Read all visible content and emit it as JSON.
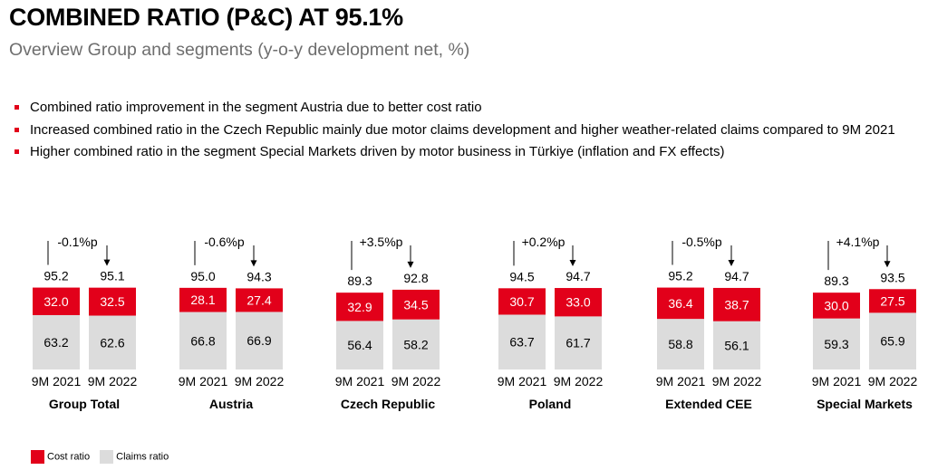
{
  "header": {
    "title": "COMBINED RATIO (P&C) AT 95.1%",
    "subtitle": "Overview Group and segments (y-o-y development net, %)"
  },
  "bullets": [
    "Combined ratio improvement in the segment Austria due to better cost ratio",
    "Increased combined ratio in the Czech Republic mainly due motor claims development and higher weather-related claims compared to 9M 2021",
    "Higher combined ratio in the segment Special Markets driven by motor business in Türkiye (inflation and FX effects)"
  ],
  "colors": {
    "cost": "#e2001a",
    "claims": "#dcdcdc",
    "bullet": "#e2001a"
  },
  "chart_data": {
    "type": "bar",
    "stacked": true,
    "periods": [
      "9M 2021",
      "9M 2022"
    ],
    "series_names": {
      "claims": "Claims ratio",
      "cost": "Cost ratio"
    },
    "legend_position": "bottom-left",
    "groups": [
      {
        "name": "Group Total",
        "change": "-0.1%p",
        "totals": [
          "95.2",
          "95.1"
        ],
        "cost": [
          32.0,
          32.5
        ],
        "claims": [
          63.2,
          62.6
        ],
        "cost_labels": [
          "32.0",
          "32.5"
        ],
        "claims_labels": [
          "63.2",
          "62.6"
        ]
      },
      {
        "name": "Austria",
        "change": "-0.6%p",
        "totals": [
          "95.0",
          "94.3"
        ],
        "cost": [
          28.1,
          27.4
        ],
        "claims": [
          66.8,
          66.9
        ],
        "cost_labels": [
          "28.1",
          "27.4"
        ],
        "claims_labels": [
          "66.8",
          "66.9"
        ]
      },
      {
        "name": "Czech Republic",
        "change": "+3.5%p",
        "totals": [
          "89.3",
          "92.8"
        ],
        "cost": [
          32.9,
          34.5
        ],
        "claims": [
          56.4,
          58.2
        ],
        "cost_labels": [
          "32.9",
          "34.5"
        ],
        "claims_labels": [
          "56.4",
          "58.2"
        ]
      },
      {
        "name": "Poland",
        "change": "+0.2%p",
        "totals": [
          "94.5",
          "94.7"
        ],
        "cost": [
          30.7,
          33.0
        ],
        "claims": [
          63.7,
          61.7
        ],
        "cost_labels": [
          "30.7",
          "33.0"
        ],
        "claims_labels": [
          "63.7",
          "61.7"
        ]
      },
      {
        "name": "Extended CEE",
        "change": "-0.5%p",
        "totals": [
          "95.2",
          "94.7"
        ],
        "cost": [
          36.4,
          38.7
        ],
        "claims": [
          58.8,
          56.1
        ],
        "cost_labels": [
          "36.4",
          "38.7"
        ],
        "claims_labels": [
          "58.8",
          "56.1"
        ]
      },
      {
        "name": "Special Markets",
        "change": "+4.1%p",
        "totals": [
          "89.3",
          "93.5"
        ],
        "cost": [
          30.0,
          27.5
        ],
        "claims": [
          59.3,
          65.9
        ],
        "cost_labels": [
          "30.0",
          "27.5"
        ],
        "claims_labels": [
          "59.3",
          "65.9"
        ]
      }
    ]
  }
}
